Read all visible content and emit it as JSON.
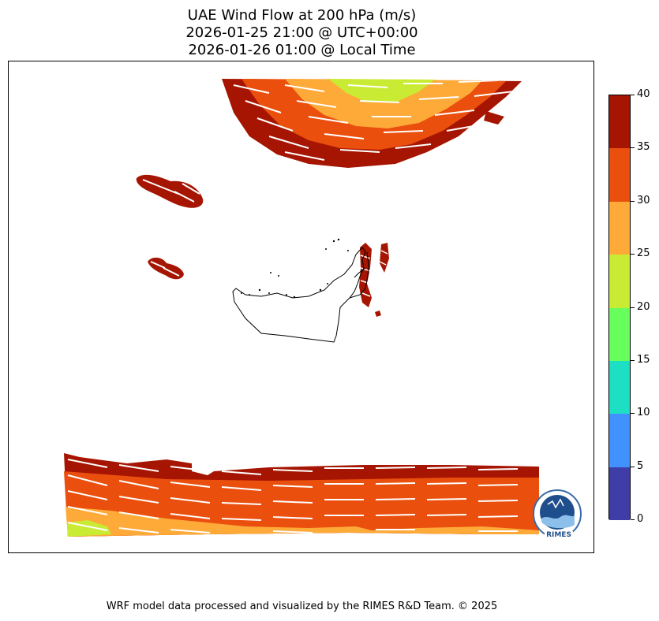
{
  "title": {
    "line1": "UAE Wind Flow at 200 hPa (m/s)",
    "line2": "2026-01-25 21:00 @ UTC+00:00",
    "line3": "2026-01-26 01:00 @ Local Time"
  },
  "colorbar": {
    "ticks": [
      "0",
      "5",
      "10",
      "15",
      "20",
      "25",
      "30",
      "35",
      "40"
    ],
    "colors": [
      "#3f3da8",
      "#4192ff",
      "#1ddfc4",
      "#66ff5c",
      "#caeb34",
      "#fdaa39",
      "#ea4f0d",
      "#a51502"
    ]
  },
  "logo": {
    "label": "RIMES"
  },
  "credit": "WRF model data processed and visualized by the RIMES R&D Team. © 2025"
}
